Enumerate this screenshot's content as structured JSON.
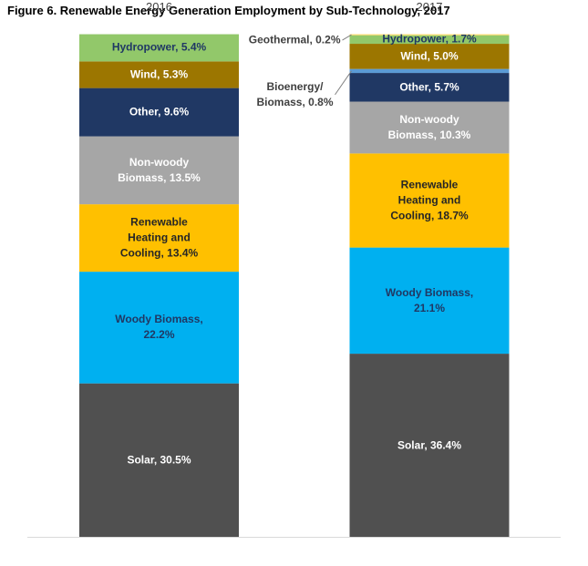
{
  "chart_data": {
    "type": "stacked_bar_100",
    "title": "Figure 6. Renewable Energy Generation Employment by Sub-Technology, 2017",
    "categories": [
      "2016",
      "2017"
    ],
    "ylim": [
      0,
      100
    ],
    "series": [
      {
        "color": "#505050",
        "label_color": "#ffffff",
        "values": [
          30.5,
          36.4
        ],
        "value_labels": [
          "Solar, 30.5%",
          "Solar, 36.4%"
        ]
      },
      {
        "color": "#00b0f0",
        "label_color": "#203864",
        "values": [
          22.2,
          21.1
        ],
        "value_labels": [
          "Woody Biomass,\n22.2%",
          "Woody Biomass,\n21.1%"
        ]
      },
      {
        "color": "#ffc000",
        "label_color": "#262626",
        "values": [
          13.4,
          18.7
        ],
        "value_labels": [
          "Renewable\nHeating and\nCooling, 13.4%",
          "Renewable\nHeating and\nCooling, 18.7%"
        ]
      },
      {
        "color": "#a6a6a6",
        "label_color": "#ffffff",
        "values": [
          13.5,
          10.3
        ],
        "value_labels": [
          "Non-woody\nBiomass, 13.5%",
          "Non-woody\nBiomass, 10.3%"
        ]
      },
      {
        "color": "#203864",
        "label_color": "#ffffff",
        "values": [
          9.6,
          5.7
        ],
        "value_labels": [
          "Other, 9.6%",
          "Other, 5.7%"
        ]
      },
      {
        "color": "#5b9bd5",
        "label_color": "#ffffff",
        "values": [
          null,
          0.8
        ],
        "value_labels": [
          null,
          "Bioenergy/\nBiomass, 0.8%"
        ]
      },
      {
        "color": "#9c7600",
        "label_color": "#ffffff",
        "values": [
          5.3,
          5.0
        ],
        "value_labels": [
          "Wind, 5.3%",
          "Wind, 5.0%"
        ]
      },
      {
        "color": "#92c86a",
        "label_color": "#203864",
        "values": [
          5.4,
          1.7
        ],
        "value_labels": [
          "Hydropower, 5.4%",
          "Hydropower, 1.7%"
        ]
      },
      {
        "color": "#ffd966",
        "label_color": "#404040",
        "values": [
          null,
          0.2
        ],
        "value_labels": [
          null,
          "Geothermal, 0.2%"
        ]
      }
    ]
  }
}
